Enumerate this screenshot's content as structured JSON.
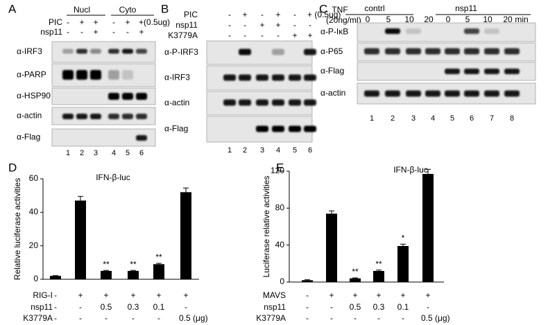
{
  "panel_letters": [
    "A",
    "B",
    "C",
    "D",
    "E"
  ],
  "blot_a": {
    "groups": [
      "Nucl",
      "Cyto"
    ],
    "conditions": [
      {
        "label": "PIC",
        "cells": [
          "-",
          "+",
          "+",
          "-",
          "+",
          "+(0.5ug)"
        ]
      },
      {
        "label": "nsp11",
        "cells": [
          "-",
          "-",
          "+",
          "-",
          "-",
          "+"
        ]
      }
    ],
    "antibodies": [
      "α-IRF3",
      "α-PARP",
      "α-HSP90",
      "α-actin",
      "α-Flag"
    ],
    "lanes": [
      1,
      2,
      3,
      4,
      5,
      6
    ]
  },
  "blot_b": {
    "conditions": [
      {
        "label": "PIC",
        "cells": [
          "-",
          "+",
          "-",
          "+",
          "-",
          "+ (0.5ug)"
        ]
      },
      {
        "label": "nsp11",
        "cells": [
          "-",
          "-",
          "+",
          "+",
          "-",
          "-"
        ]
      },
      {
        "label": "K3779A",
        "cells": [
          "-",
          "-",
          "-",
          "-",
          "+",
          "+"
        ]
      }
    ],
    "antibodies": [
      "α-P-IRF3",
      "α-IRF3",
      "α-actin",
      "α-Flag"
    ],
    "lanes": [
      1,
      2,
      3,
      4,
      5,
      6
    ]
  },
  "blot_c": {
    "treatment": "TNF",
    "dose": "(20ng/ml)",
    "groups": [
      "contrl",
      "nsp11"
    ],
    "times": [
      0,
      5,
      10,
      20,
      0,
      5,
      10,
      20
    ],
    "time_unit": "min",
    "antibodies": [
      "α-P-IκB",
      "α-P65",
      "α-Flag",
      "α-actin"
    ],
    "lanes": [
      1,
      2,
      3,
      4,
      5,
      6,
      7,
      8
    ]
  },
  "chart_data": [
    {
      "type": "bar",
      "title": "IFN-β-luc",
      "y_label": "Relative luciferase activities",
      "color": "#000000",
      "values": [
        2,
        47,
        5,
        5,
        9,
        52
      ],
      "errors": [
        0.2,
        2.5,
        0.3,
        0.3,
        0.5,
        2.5
      ],
      "significance": [
        null,
        null,
        "**",
        "**",
        "**",
        null
      ],
      "ylim": [
        0,
        60
      ],
      "yticks": [
        0,
        20,
        40,
        60
      ],
      "rows": [
        {
          "label": "RIG-I",
          "cells": [
            "-",
            "+",
            "+",
            "+",
            "+",
            "+"
          ]
        },
        {
          "label": "nsp11",
          "cells": [
            "-",
            "-",
            "0.5",
            "0.3",
            "0.1",
            "-"
          ]
        },
        {
          "label": "K3779A",
          "cells": [
            "-",
            "-",
            "-",
            "-",
            "-",
            "0.5 (μg)"
          ]
        }
      ]
    },
    {
      "type": "bar",
      "title": "IFN-β-luc",
      "y_label": "Luciferase relative activities",
      "color": "#000000",
      "values": [
        2,
        74,
        4,
        12,
        39,
        117
      ],
      "errors": [
        0.5,
        3,
        0.5,
        1,
        2,
        5
      ],
      "significance": [
        null,
        null,
        "**",
        "**",
        "*",
        null
      ],
      "ylim": [
        0,
        120
      ],
      "yticks": [
        0,
        40,
        80,
        120
      ],
      "rows": [
        {
          "label": "MAVS",
          "cells": [
            "-",
            "+",
            "+",
            "+",
            "+",
            "+"
          ]
        },
        {
          "label": "nsp11",
          "cells": [
            "-",
            "-",
            "0.5",
            "0.3",
            "0.1",
            "-"
          ]
        },
        {
          "label": "K3779A",
          "cells": [
            "-",
            "-",
            "-",
            "-",
            "-",
            "0.5 (μg)"
          ]
        }
      ]
    }
  ]
}
